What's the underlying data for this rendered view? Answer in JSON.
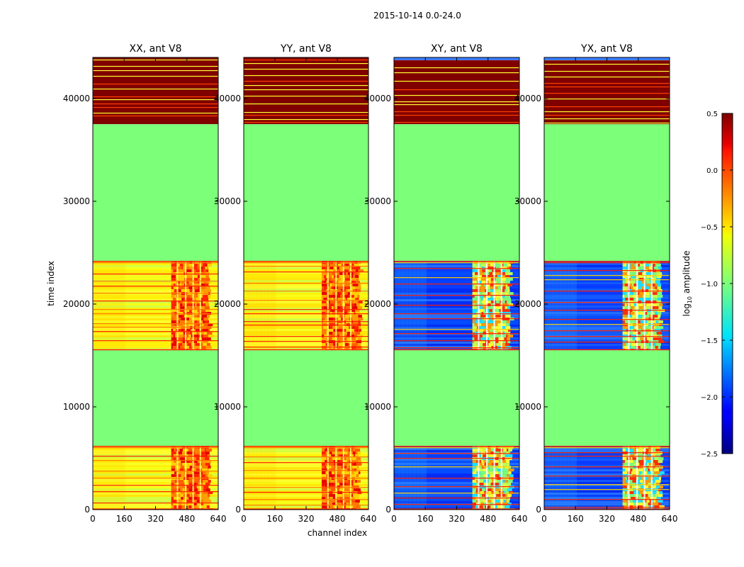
{
  "suptitle": "2015-10-14 0.0-24.0",
  "xlabel": "channel index",
  "ylabel": "time index",
  "colorbar": {
    "label_prefix": "log",
    "label_sub": "10",
    "label_suffix": " amplitude",
    "range": [
      -2.5,
      0.5
    ],
    "ticks": [
      "0.5",
      "0.0",
      "−0.5",
      "−1.0",
      "−1.5",
      "−2.0",
      "−2.5"
    ],
    "tick_values": [
      0.5,
      0.0,
      -0.5,
      -1.0,
      -1.5,
      -2.0,
      -2.5
    ]
  },
  "chart_data": {
    "type": "heatmap",
    "title": "2015-10-14 0.0-24.0",
    "xlabel": "channel index",
    "ylabel": "time index",
    "xlim": [
      0,
      640
    ],
    "ylim": [
      0,
      44000
    ],
    "x_ticks": [
      0,
      160,
      320,
      480,
      640
    ],
    "y_ticks": [
      0,
      10000,
      20000,
      30000,
      40000
    ],
    "color_scale": "jet",
    "value_range": [
      -2.5,
      0.5
    ],
    "panels": [
      {
        "title": "XX, ant V8",
        "kind": "parallel",
        "show_ylabel": true
      },
      {
        "title": "YY, ant V8",
        "kind": "parallel",
        "show_ylabel": false
      },
      {
        "title": "XY, ant V8",
        "kind": "cross",
        "show_ylabel": false
      },
      {
        "title": "YX, ant V8",
        "kind": "cross",
        "show_ylabel": false
      }
    ],
    "time_segments": [
      {
        "from": 37500,
        "to": 44000,
        "level": "saturated (~0.5)"
      },
      {
        "from": 24200,
        "to": 37500,
        "level": "flat (~-0.9)"
      },
      {
        "from": 15500,
        "to": 24200,
        "level": "data"
      },
      {
        "from": 6200,
        "to": 15500,
        "level": "flat (~-0.9)"
      },
      {
        "from": 0,
        "to": 6200,
        "level": "data"
      }
    ],
    "bright_channel_range": [
      400,
      590
    ]
  }
}
